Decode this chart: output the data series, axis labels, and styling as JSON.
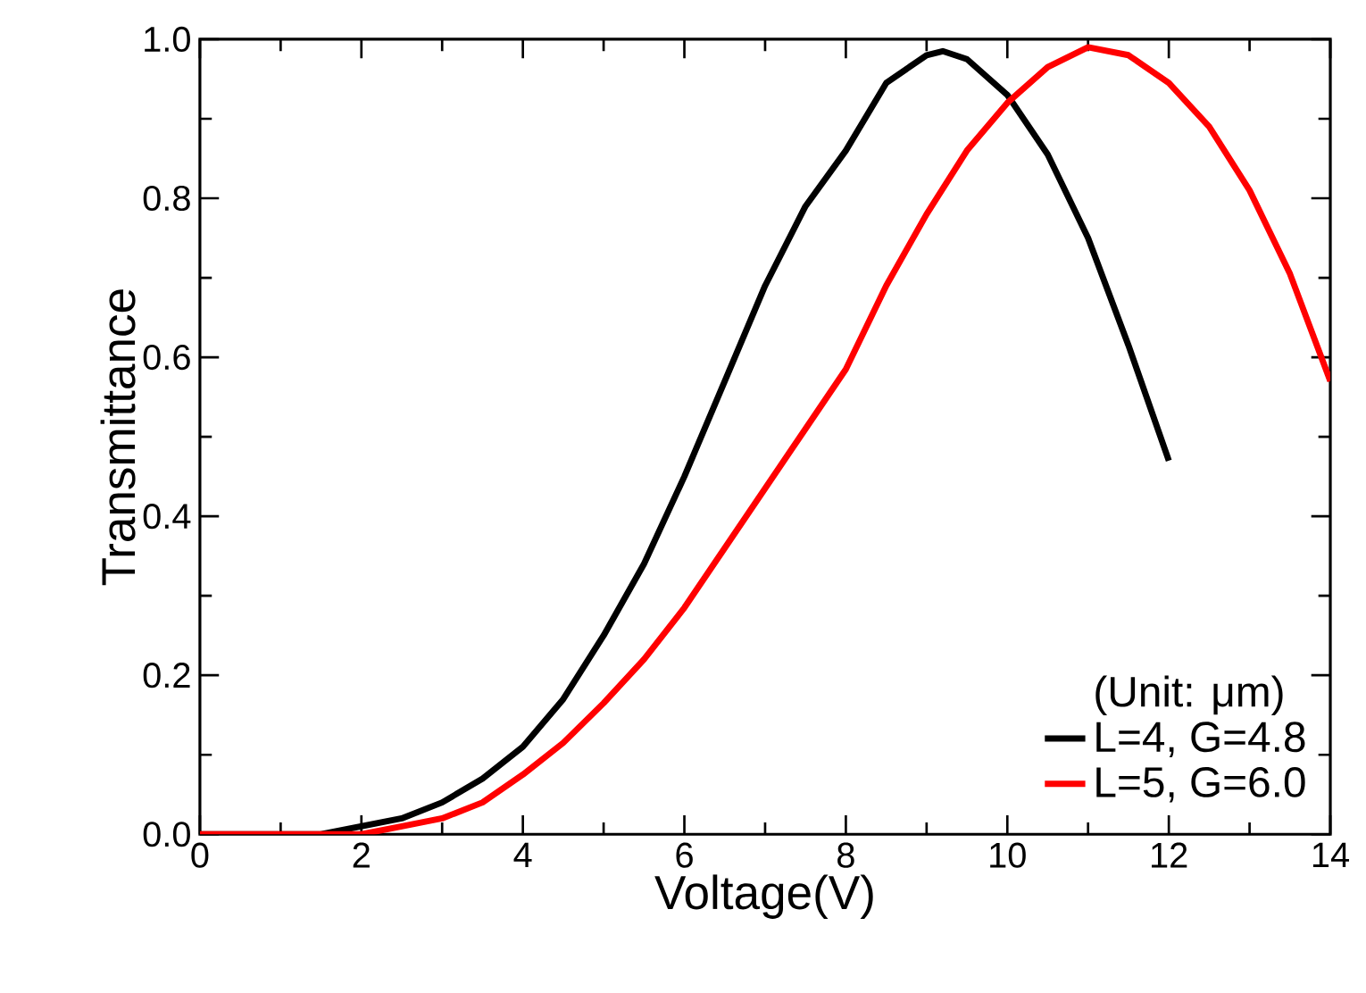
{
  "chart_data": {
    "type": "line",
    "xlabel": "Voltage(V)",
    "ylabel": "Transmittance",
    "legend_title": "(Unit: μm)",
    "xlim": [
      0,
      14
    ],
    "xticks": [
      0,
      2,
      4,
      6,
      8,
      10,
      12,
      14
    ],
    "ylim": [
      0,
      1.0
    ],
    "yticks": [
      {
        "value": 0,
        "label": "0.0"
      },
      {
        "value": 0.2,
        "label": "0.2"
      },
      {
        "value": 0.4,
        "label": "0.4"
      },
      {
        "value": 0.6,
        "label": "0.6"
      },
      {
        "value": 0.8,
        "label": "0.8"
      },
      {
        "value": 1.0,
        "label": "1.0"
      }
    ],
    "grid": false,
    "legend": "bottom right",
    "marker": "none",
    "line_style": "solid",
    "series": [
      {
        "name": "L=4, G=4.8",
        "color": "#000000",
        "x": [
          0,
          1,
          1.5,
          2,
          2.5,
          3,
          3.5,
          4,
          4.5,
          5,
          5.5,
          6,
          6.5,
          7,
          7.5,
          8,
          8.5,
          9,
          9.2,
          9.5,
          10,
          10.5,
          11,
          11.5,
          12
        ],
        "values": [
          0,
          0,
          0,
          0.01,
          0.02,
          0.04,
          0.07,
          0.11,
          0.17,
          0.25,
          0.34,
          0.45,
          0.57,
          0.69,
          0.79,
          0.86,
          0.945,
          0.98,
          0.985,
          0.975,
          0.93,
          0.855,
          0.75,
          0.615,
          0.47
        ]
      },
      {
        "name": "L=5, G=6.0",
        "color": "#ff0000",
        "x": [
          0,
          1,
          1.5,
          2,
          2.5,
          3,
          3.5,
          4,
          4.5,
          5,
          5.5,
          6,
          6.5,
          7,
          7.5,
          8,
          8.5,
          9,
          9.5,
          10,
          10.5,
          11,
          11.5,
          12,
          12.5,
          13,
          13.5,
          14
        ],
        "values": [
          0,
          0,
          0,
          0,
          0.01,
          0.02,
          0.04,
          0.075,
          0.115,
          0.165,
          0.22,
          0.285,
          0.36,
          0.435,
          0.51,
          0.585,
          0.69,
          0.78,
          0.86,
          0.92,
          0.965,
          0.99,
          0.98,
          0.945,
          0.89,
          0.81,
          0.705,
          0.57
        ]
      }
    ]
  }
}
